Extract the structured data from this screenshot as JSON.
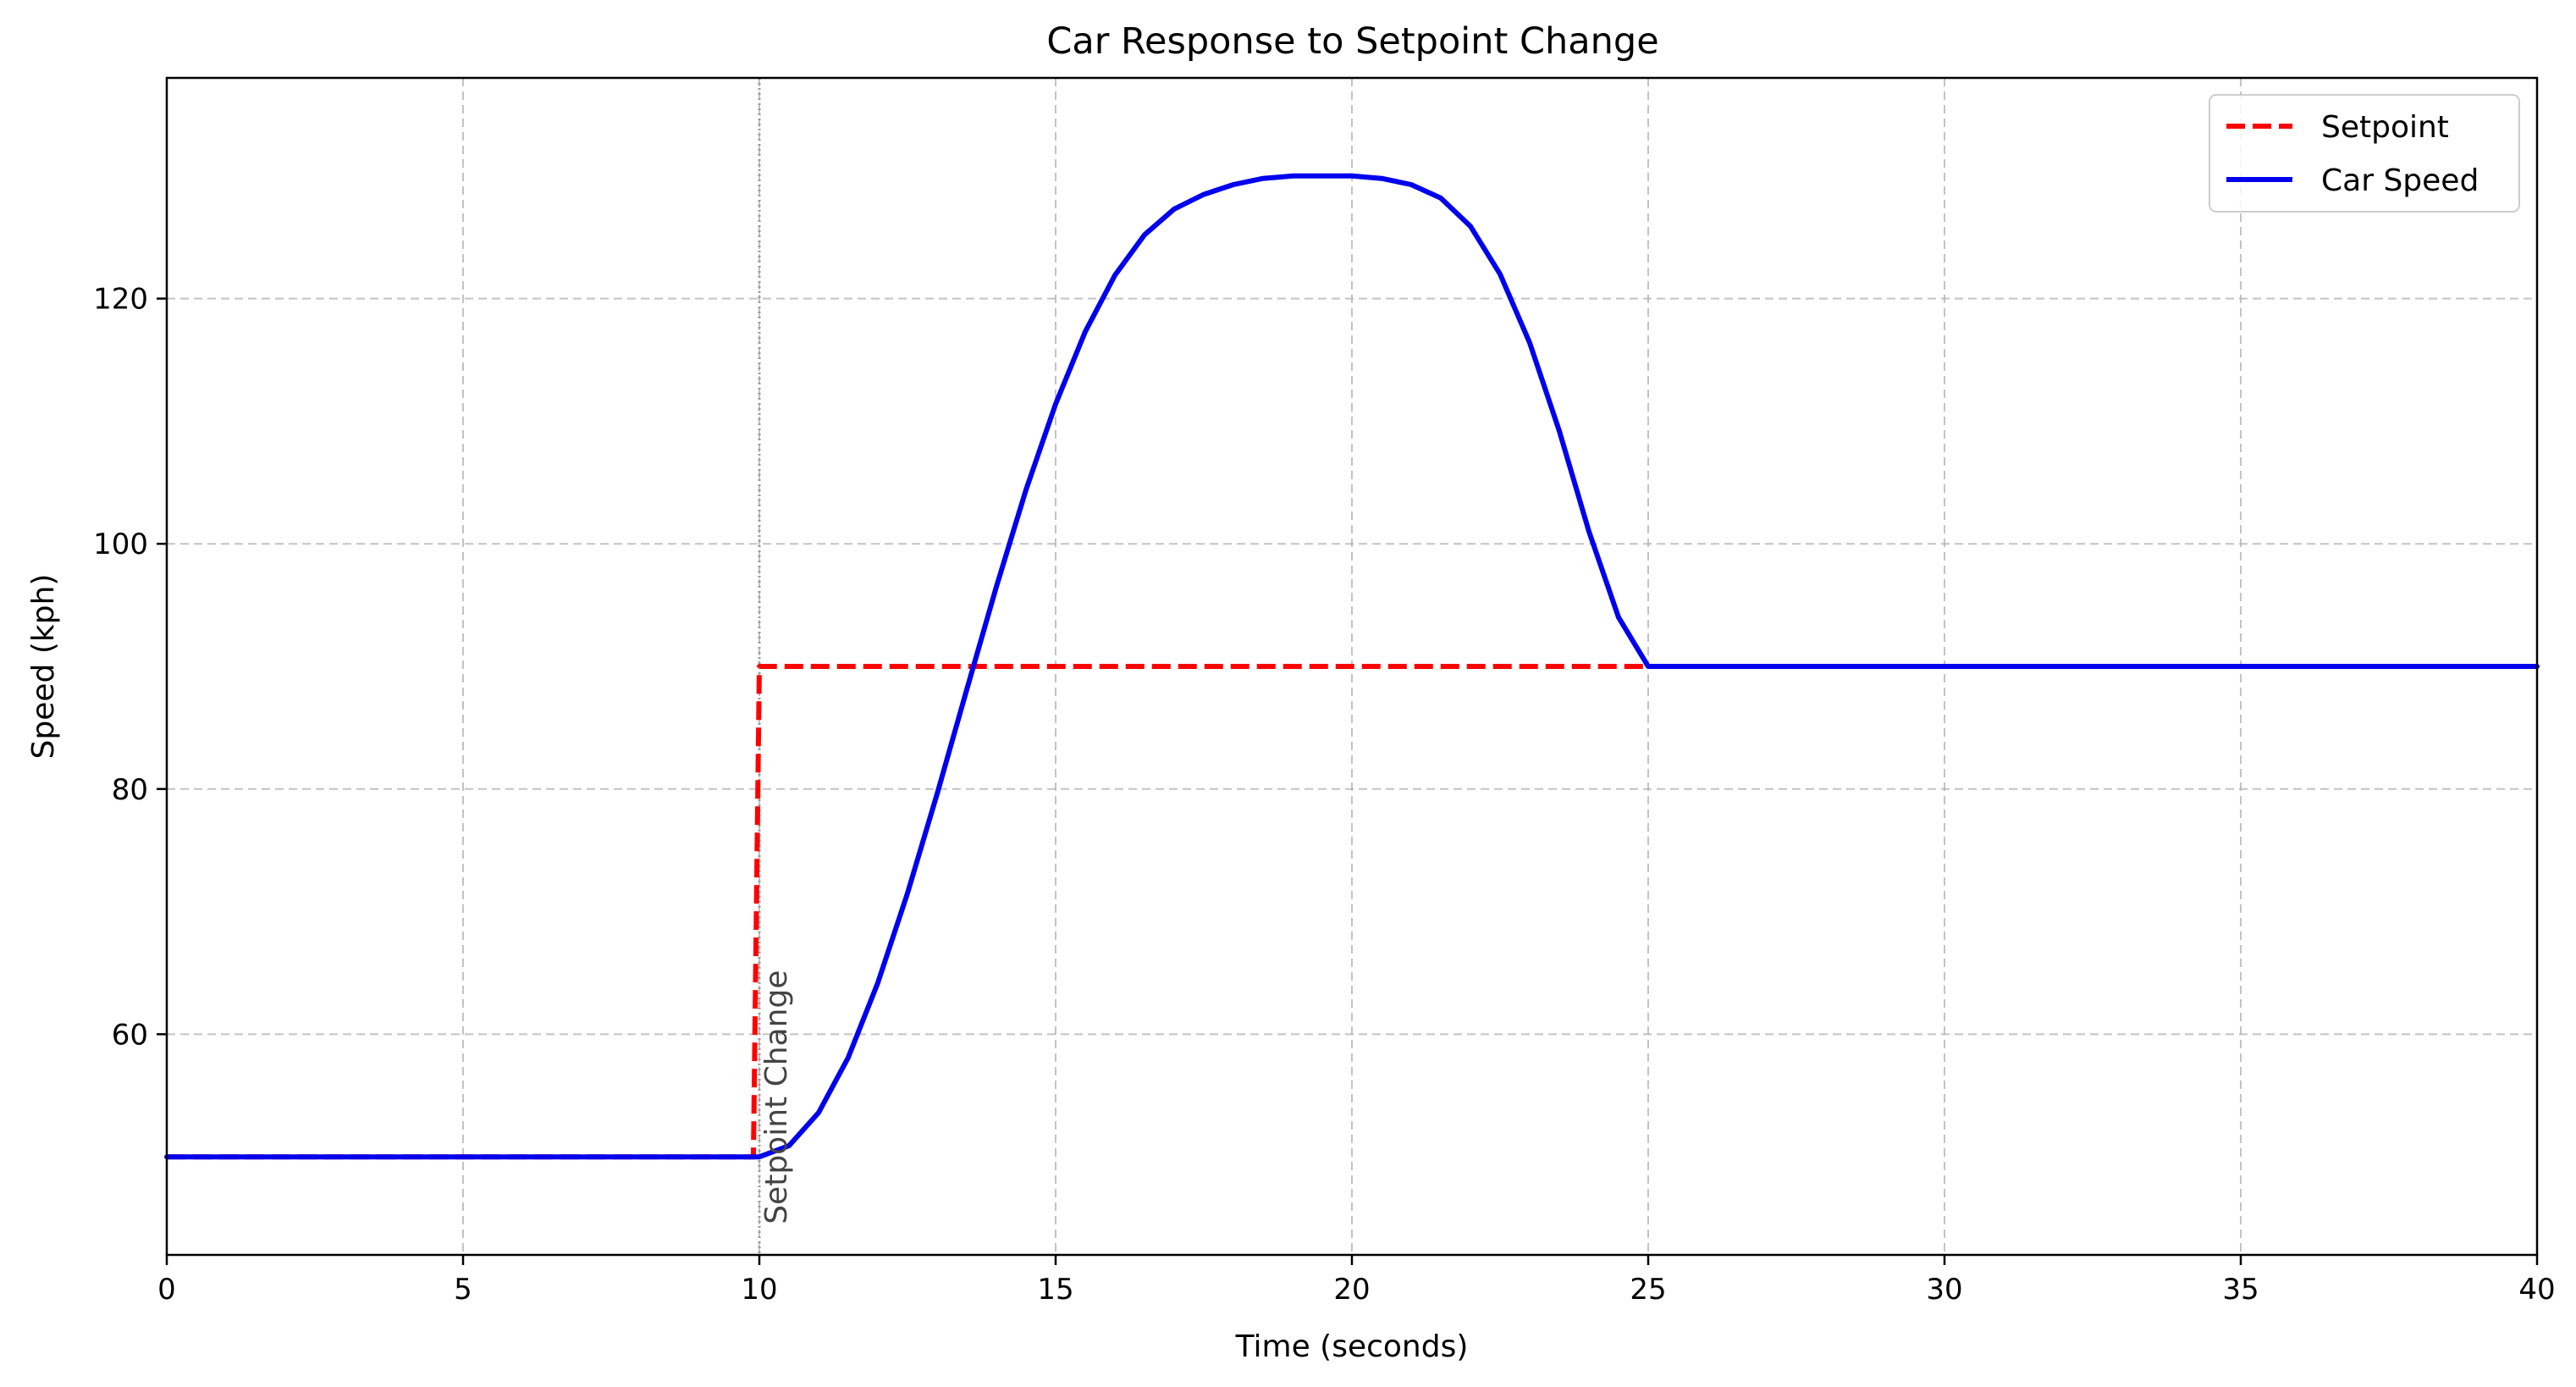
{
  "chart_data": {
    "type": "line",
    "title": "Car Response to Setpoint Change",
    "xlabel": "Time (seconds)",
    "ylabel": "Speed (kph)",
    "xlim": [
      0,
      40
    ],
    "ylim": [
      42,
      138
    ],
    "xticks": [
      0,
      5,
      10,
      15,
      20,
      25,
      30,
      35,
      40
    ],
    "yticks": [
      60,
      80,
      100,
      120
    ],
    "grid": true,
    "legend_position": "top-right",
    "series": [
      {
        "name": "Setpoint",
        "style": "dashed",
        "color": "#ff0000",
        "x": [
          0,
          9.9,
          10,
          25,
          40
        ],
        "y": [
          50,
          50,
          90,
          90,
          90
        ]
      },
      {
        "name": "Car Speed",
        "style": "solid",
        "color": "#0000ee",
        "x": [
          0,
          10,
          10.5,
          11,
          11.5,
          12,
          12.5,
          13,
          13.5,
          14,
          14.5,
          15,
          15.5,
          16,
          16.5,
          17,
          17.5,
          18,
          18.5,
          19,
          19.5,
          20,
          20.5,
          21,
          21.5,
          22,
          22.5,
          23,
          23.5,
          24,
          24.5,
          25,
          30,
          35,
          40
        ],
        "y": [
          50,
          50,
          50.9,
          53.6,
          58.1,
          64.2,
          71.5,
          79.6,
          88.1,
          96.5,
          104.4,
          111.4,
          117.3,
          121.9,
          125.2,
          127.3,
          128.5,
          129.3,
          129.8,
          130.0,
          130.0,
          130.0,
          129.8,
          129.3,
          128.2,
          125.9,
          122.0,
          116.4,
          109.2,
          101.0,
          94.0,
          90,
          90,
          90,
          90
        ]
      }
    ],
    "annotations": [
      {
        "text": "Setpoint Change",
        "x": 10,
        "orientation": "vertical"
      }
    ]
  }
}
